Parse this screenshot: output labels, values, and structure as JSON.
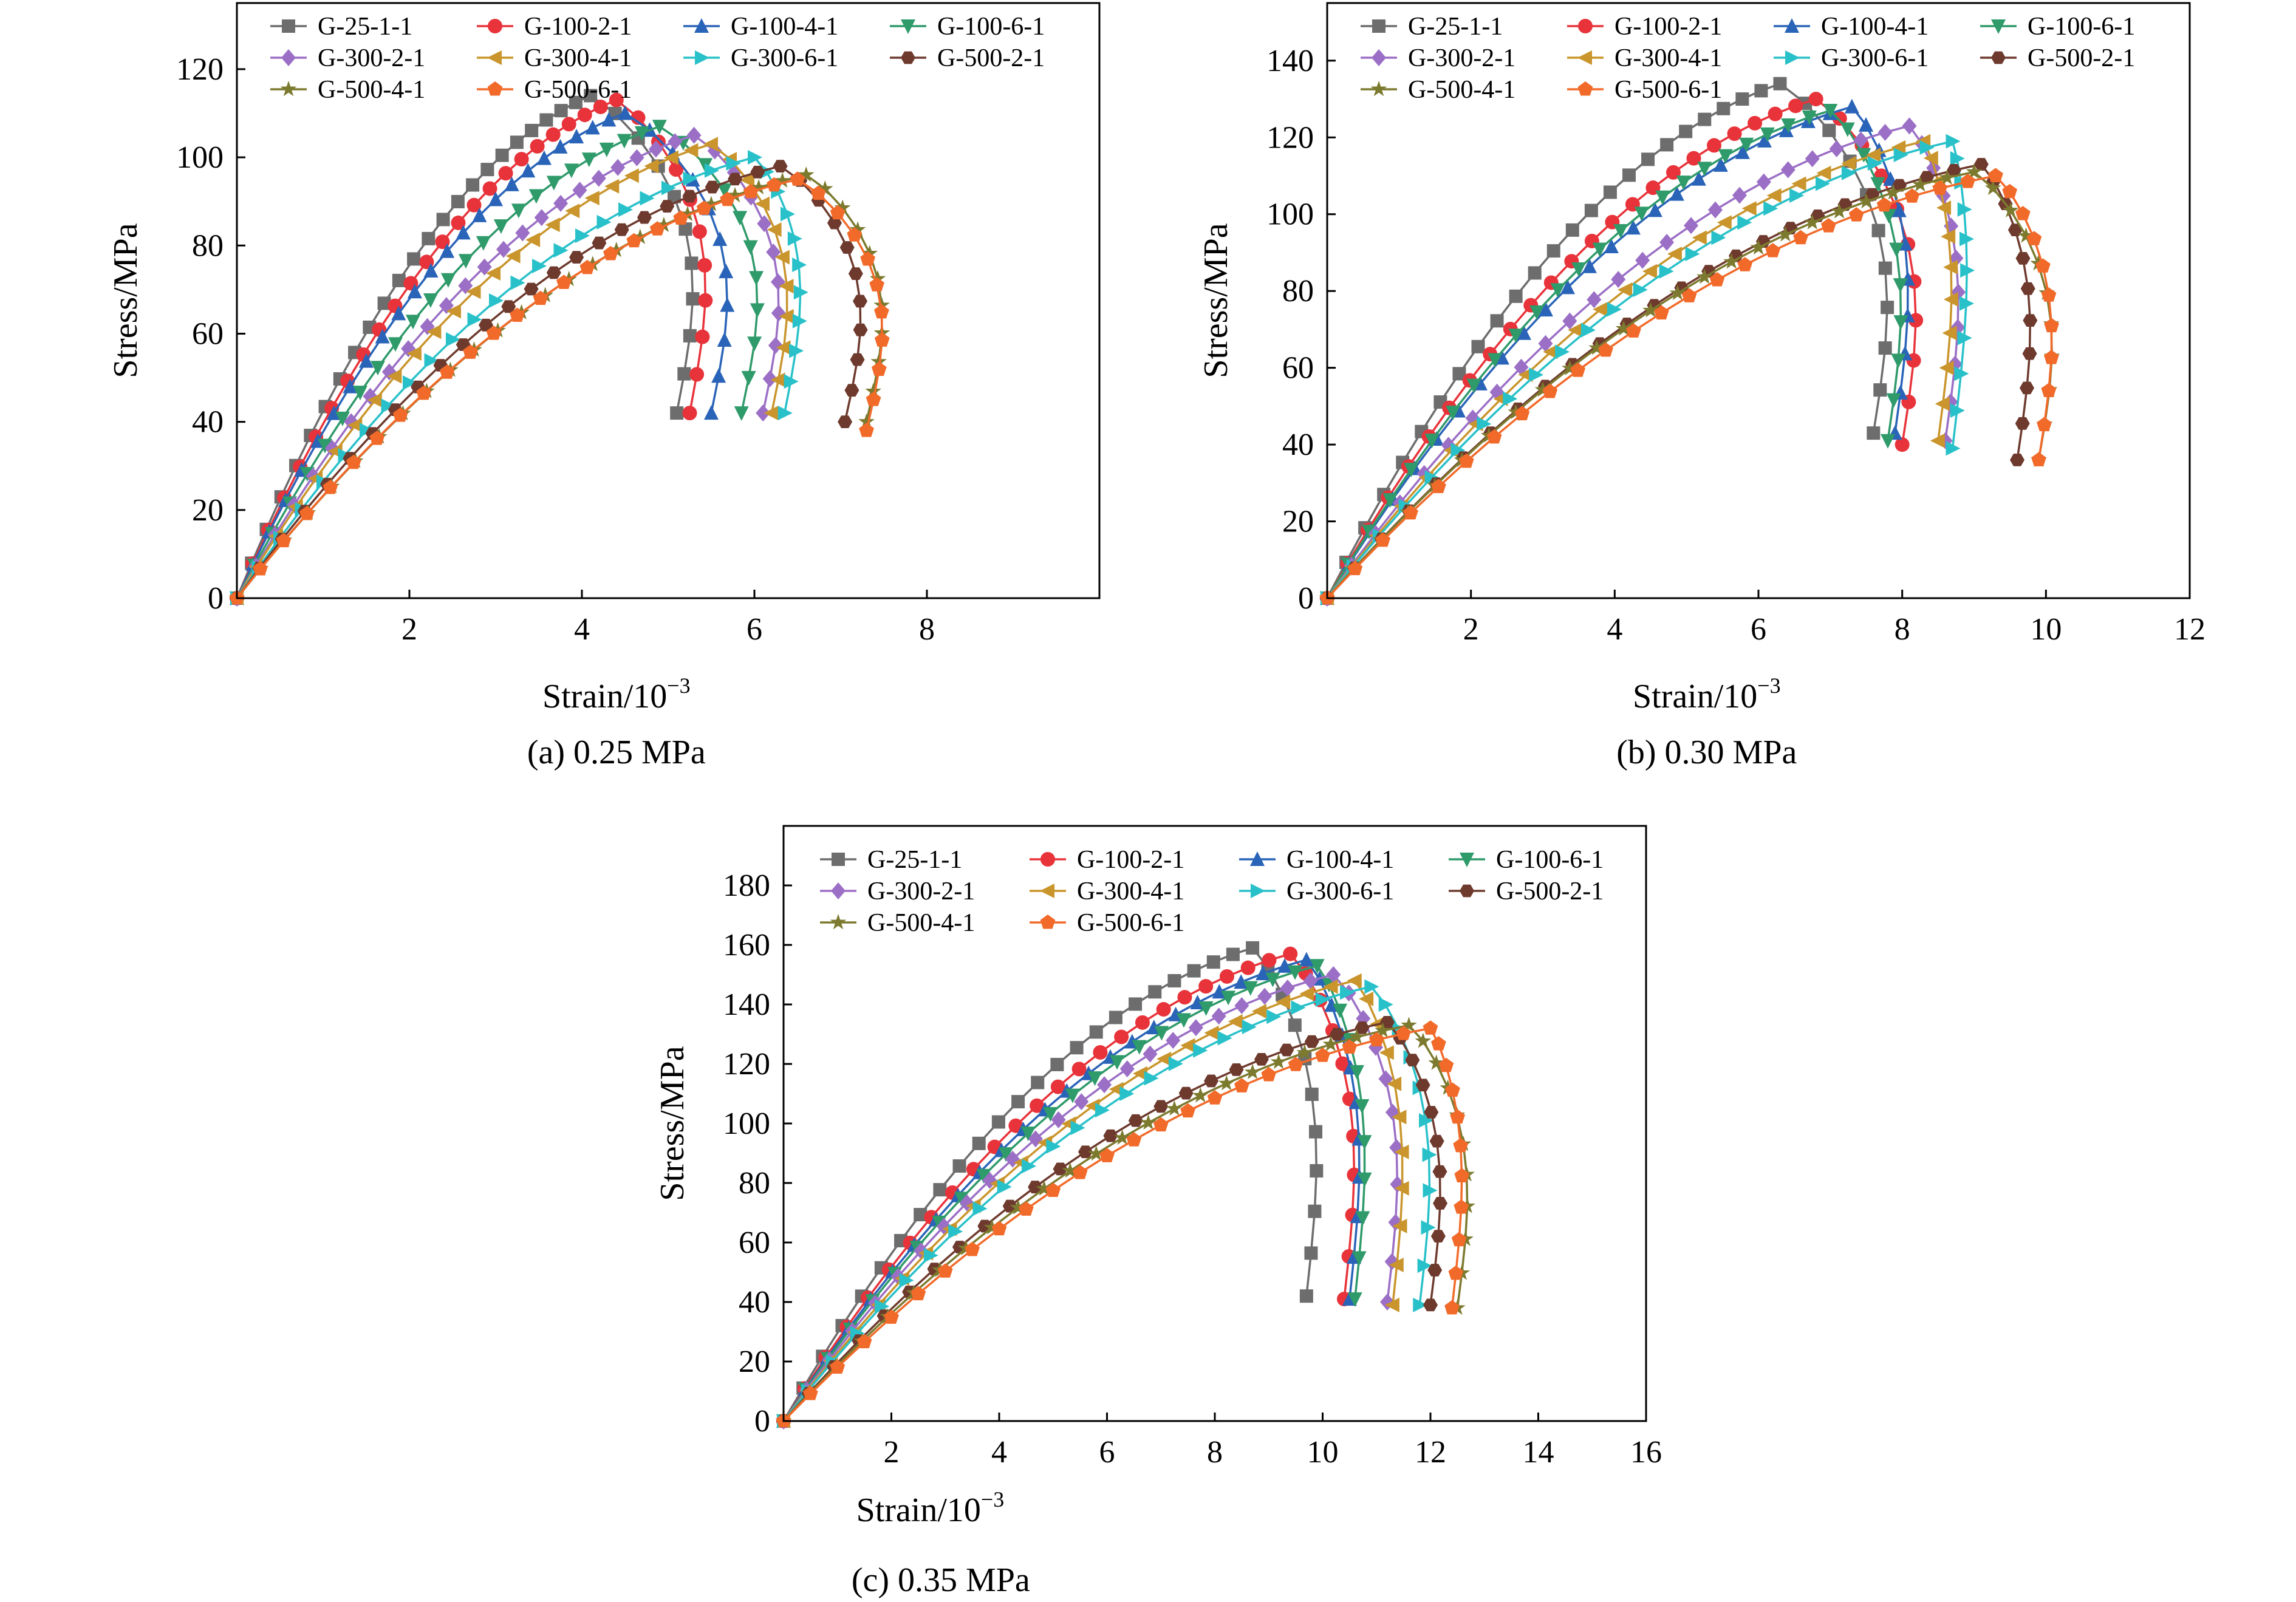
{
  "legend_order": [
    "G-25-1-1",
    "G-100-2-1",
    "G-100-4-1",
    "G-100-6-1",
    "G-300-2-1",
    "G-300-4-1",
    "G-300-6-1",
    "G-500-2-1",
    "G-500-4-1",
    "G-500-6-1"
  ],
  "series_style": {
    "G-25-1-1": {
      "color": "#6d6d6d",
      "marker": "square"
    },
    "G-100-2-1": {
      "color": "#e8333a",
      "marker": "circle"
    },
    "G-100-4-1": {
      "color": "#2a64b8",
      "marker": "triangle-up"
    },
    "G-100-6-1": {
      "color": "#2f9a6a",
      "marker": "triangle-down"
    },
    "G-300-2-1": {
      "color": "#9b6fc6",
      "marker": "diamond"
    },
    "G-300-4-1": {
      "color": "#c9952c",
      "marker": "triangle-left"
    },
    "G-300-6-1": {
      "color": "#29c1c9",
      "marker": "triangle-right"
    },
    "G-500-2-1": {
      "color": "#6e3a2e",
      "marker": "hexagon"
    },
    "G-500-4-1": {
      "color": "#7c7a2e",
      "marker": "star"
    },
    "G-500-6-1": {
      "color": "#f26a2a",
      "marker": "pentagon"
    }
  },
  "chart_data": [
    {
      "type": "line",
      "caption": "(a) 0.25 MPa",
      "xlabel": "Strain/10",
      "xlabel_sup": "−3",
      "ylabel": "Stress/MPa",
      "xlim": [
        0,
        10
      ],
      "ylim": [
        0,
        135
      ],
      "xticks": [
        2,
        4,
        6,
        8
      ],
      "yticks": [
        0,
        20,
        40,
        60,
        80,
        100,
        120
      ],
      "grid": false,
      "legend": "top",
      "series": [
        {
          "name": "G-25-1-1",
          "peak": [
            4.1,
            114
          ],
          "tail": [
            5.1,
            42
          ]
        },
        {
          "name": "G-100-2-1",
          "peak": [
            4.4,
            113
          ],
          "tail": [
            5.25,
            42
          ]
        },
        {
          "name": "G-100-4-1",
          "peak": [
            4.5,
            110
          ],
          "tail": [
            5.5,
            42
          ]
        },
        {
          "name": "G-100-6-1",
          "peak": [
            4.9,
            107
          ],
          "tail": [
            5.85,
            42
          ]
        },
        {
          "name": "G-300-2-1",
          "peak": [
            5.3,
            105
          ],
          "tail": [
            6.1,
            42
          ]
        },
        {
          "name": "G-300-4-1",
          "peak": [
            5.5,
            103
          ],
          "tail": [
            6.2,
            42
          ]
        },
        {
          "name": "G-300-6-1",
          "peak": [
            6.0,
            100
          ],
          "tail": [
            6.35,
            42
          ]
        },
        {
          "name": "G-500-2-1",
          "peak": [
            6.3,
            98
          ],
          "tail": [
            7.05,
            40
          ]
        },
        {
          "name": "G-500-4-1",
          "peak": [
            6.6,
            96
          ],
          "tail": [
            7.3,
            40
          ]
        },
        {
          "name": "G-500-6-1",
          "peak": [
            6.5,
            95
          ],
          "tail": [
            7.3,
            38
          ]
        }
      ]
    },
    {
      "type": "line",
      "caption": "(b) 0.30 MPa",
      "xlabel": "Strain/10",
      "xlabel_sup": "−3",
      "ylabel": "Stress/MPa",
      "xlim": [
        0,
        12
      ],
      "ylim": [
        0,
        155
      ],
      "xticks": [
        2,
        4,
        6,
        8,
        10,
        12
      ],
      "yticks": [
        0,
        20,
        40,
        60,
        80,
        100,
        120,
        140
      ],
      "grid": false,
      "legend": "top",
      "series": [
        {
          "name": "G-25-1-1",
          "peak": [
            6.3,
            134
          ],
          "tail": [
            7.6,
            43
          ]
        },
        {
          "name": "G-100-2-1",
          "peak": [
            6.8,
            130
          ],
          "tail": [
            8.0,
            40
          ]
        },
        {
          "name": "G-100-4-1",
          "peak": [
            7.3,
            128
          ],
          "tail": [
            7.9,
            43
          ]
        },
        {
          "name": "G-100-6-1",
          "peak": [
            7.0,
            127
          ],
          "tail": [
            7.8,
            41
          ]
        },
        {
          "name": "G-300-2-1",
          "peak": [
            8.1,
            123
          ],
          "tail": [
            8.6,
            41
          ]
        },
        {
          "name": "G-300-4-1",
          "peak": [
            8.3,
            119
          ],
          "tail": [
            8.5,
            41
          ]
        },
        {
          "name": "G-300-6-1",
          "peak": [
            8.7,
            119
          ],
          "tail": [
            8.7,
            39
          ]
        },
        {
          "name": "G-500-2-1",
          "peak": [
            9.1,
            113
          ],
          "tail": [
            9.6,
            36
          ]
        },
        {
          "name": "G-500-4-1",
          "peak": [
            9.0,
            111
          ],
          "tail": [
            9.9,
            36
          ]
        },
        {
          "name": "G-500-6-1",
          "peak": [
            9.3,
            110
          ],
          "tail": [
            9.9,
            36
          ]
        }
      ]
    },
    {
      "type": "line",
      "caption": "(c) 0.35 MPa",
      "xlabel": "Strain/10",
      "xlabel_sup": "−3",
      "ylabel": "Stress/MPa",
      "xlim": [
        0,
        16
      ],
      "ylim": [
        0,
        200
      ],
      "xticks": [
        2,
        4,
        6,
        8,
        10,
        12,
        14,
        16
      ],
      "yticks": [
        0,
        20,
        40,
        60,
        80,
        100,
        120,
        140,
        160,
        180
      ],
      "grid": false,
      "legend": "top",
      "series": [
        {
          "name": "G-25-1-1",
          "peak": [
            8.7,
            159
          ],
          "tail": [
            9.7,
            42
          ]
        },
        {
          "name": "G-100-2-1",
          "peak": [
            9.4,
            157
          ],
          "tail": [
            10.4,
            41
          ]
        },
        {
          "name": "G-100-4-1",
          "peak": [
            9.7,
            155
          ],
          "tail": [
            10.5,
            41
          ]
        },
        {
          "name": "G-100-6-1",
          "peak": [
            9.9,
            153
          ],
          "tail": [
            10.6,
            41
          ]
        },
        {
          "name": "G-300-2-1",
          "peak": [
            10.2,
            150
          ],
          "tail": [
            11.2,
            40
          ]
        },
        {
          "name": "G-300-4-1",
          "peak": [
            10.6,
            148
          ],
          "tail": [
            11.3,
            39
          ]
        },
        {
          "name": "G-300-6-1",
          "peak": [
            10.9,
            146
          ],
          "tail": [
            11.8,
            39
          ]
        },
        {
          "name": "G-500-2-1",
          "peak": [
            11.2,
            134
          ],
          "tail": [
            12.0,
            39
          ]
        },
        {
          "name": "G-500-4-1",
          "peak": [
            11.6,
            133
          ],
          "tail": [
            12.5,
            38
          ]
        },
        {
          "name": "G-500-6-1",
          "peak": [
            12.0,
            132
          ],
          "tail": [
            12.4,
            38
          ]
        }
      ]
    }
  ]
}
